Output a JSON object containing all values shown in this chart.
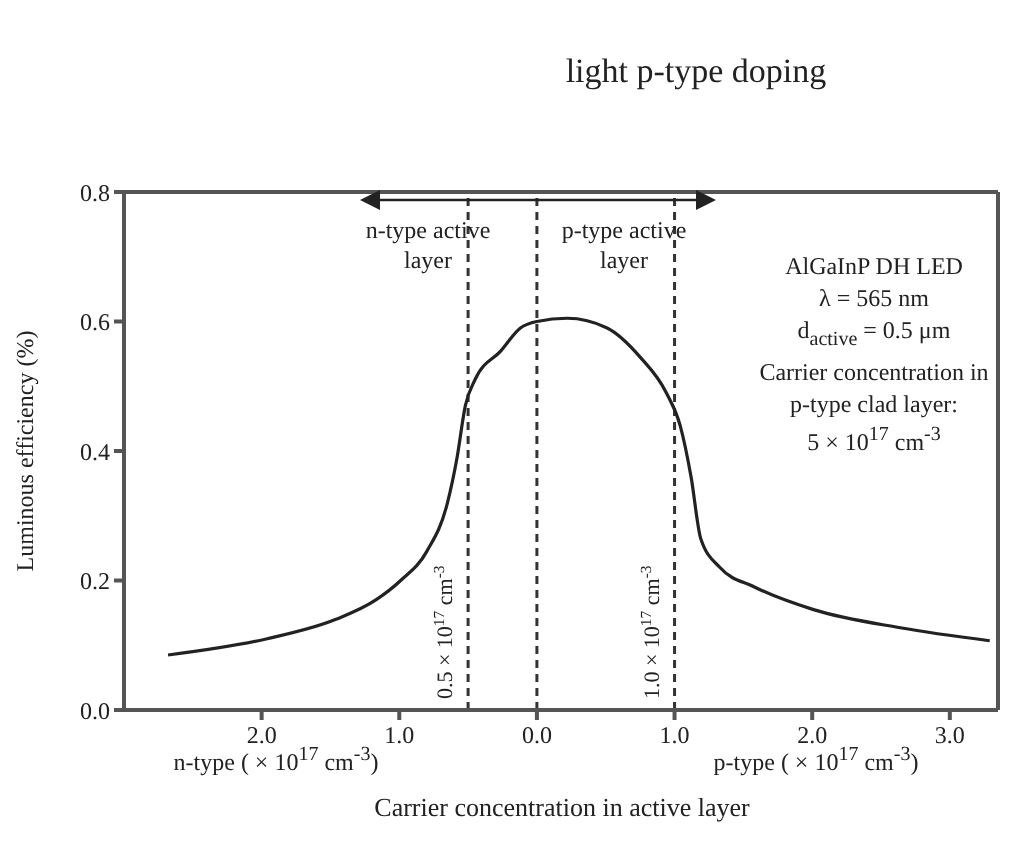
{
  "chart_data": {
    "type": "line",
    "title": "light p-type doping",
    "xlabel": "Carrier concentration in active layer",
    "ylabel": "Luminous efficiency  (%)",
    "annotations": [
      "n-type active layer",
      "p-type active layer",
      "AlGaInP DH LED",
      "λ = 565 nm",
      "d$_{active}$ = 0.5 μm",
      "Carrier concentration in p-type clad layer:",
      "5 × 10$^{17}$ cm$^{-3}$",
      "n-type ( × 10$^{17}$ cm$^{-3}$)",
      "p-type ( × 10$^{17}$ cm$^{-3}$)"
    ],
    "series": [
      {
        "color": "#222222",
        "x": [
          -2.68,
          -1.96,
          -1.46,
          -1.17,
          -0.99,
          -0.8,
          -0.65,
          -0.58,
          -0.52,
          -0.45,
          -0.26,
          -0.12,
          0.0,
          0.22,
          0.51,
          0.75,
          0.94,
          1.04,
          1.12,
          1.19,
          1.33,
          1.58,
          2.01,
          2.64,
          3.29
        ],
        "values": [
          0.085,
          0.11,
          0.14,
          0.17,
          0.2,
          0.245,
          0.32,
          0.39,
          0.47,
          0.51,
          0.555,
          0.59,
          0.6,
          0.605,
          0.59,
          0.545,
          0.49,
          0.44,
          0.36,
          0.265,
          0.22,
          0.19,
          0.155,
          0.127,
          0.107
        ]
      }
    ],
    "xlim": [
      -3.0,
      3.35
    ],
    "xticks": [
      {
        "value": -2,
        "label": "2.0"
      },
      {
        "value": -1,
        "label": "1.0"
      },
      {
        "value": 0,
        "label": "0.0"
      },
      {
        "value": 1,
        "label": "1.0"
      },
      {
        "value": 2,
        "label": "2.0"
      },
      {
        "value": 3,
        "label": "3.0"
      }
    ],
    "ylim": [
      0,
      0.8
    ],
    "yticks": [
      {
        "value": 0,
        "label": "0.0"
      },
      {
        "value": 0.2,
        "label": "0.2"
      },
      {
        "value": 0.4,
        "label": "0.4"
      },
      {
        "value": 0.6,
        "label": "0.6"
      },
      {
        "value": 0.8,
        "label": "0.8"
      }
    ],
    "ref_lines": [
      {
        "axis": "x",
        "value": -0.5,
        "label": "0.5 × 10$^{17}$ cm$^{-3}$",
        "line_style": "dashed",
        "color": "#333333"
      },
      {
        "axis": "x",
        "value": 0,
        "line_style": "dashed",
        "color": "#333333"
      },
      {
        "axis": "x",
        "value": 1.0,
        "label": "1.0 × 10$^{17}$ cm$^{-3}$",
        "line_style": "dashed",
        "color": "#333333"
      }
    ],
    "grid": false,
    "marker": "none",
    "line_style": "solid"
  }
}
